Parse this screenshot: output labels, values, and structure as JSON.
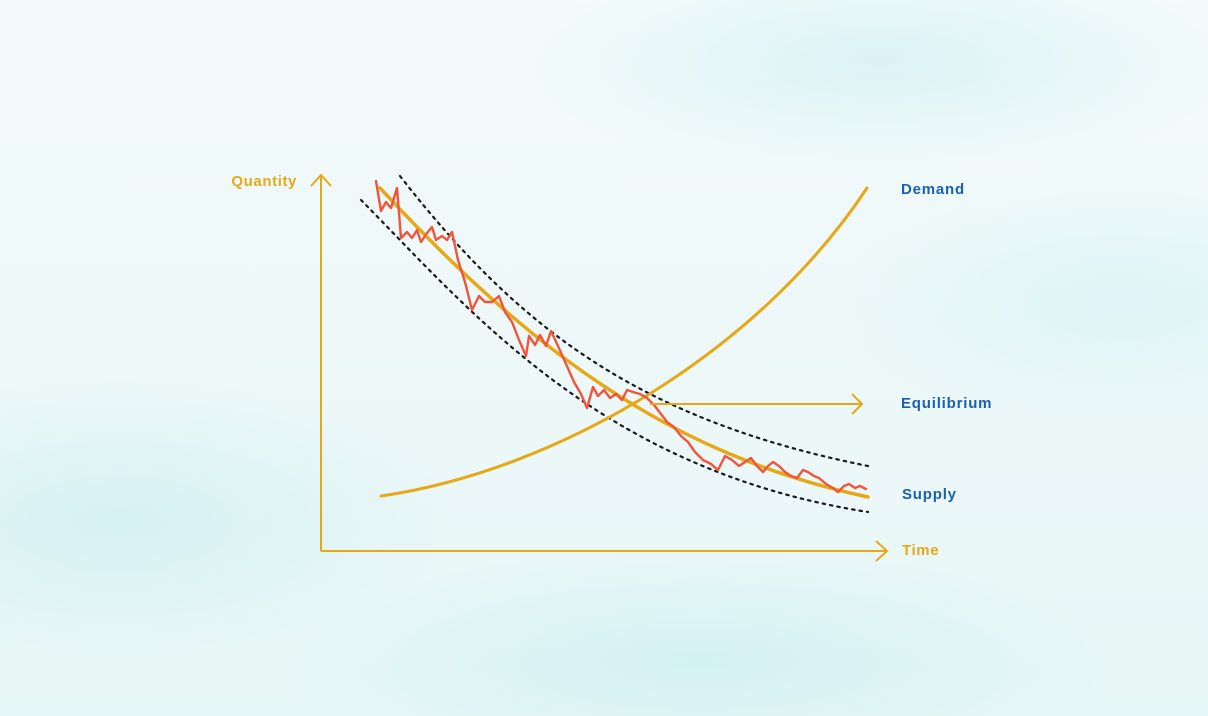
{
  "colors": {
    "axis": "#e6a817",
    "supply_curve": "#e6a817",
    "demand_curve": "#e6a817",
    "actual_series": "#f0553c",
    "confidence_band": "#1a1a1a",
    "label_text": "#1a5fb0"
  },
  "labels": {
    "y_axis": "Quantity",
    "x_axis": "Time",
    "demand": "Demand",
    "equilibrium": "Equilibrium",
    "supply": "Supply"
  }
}
